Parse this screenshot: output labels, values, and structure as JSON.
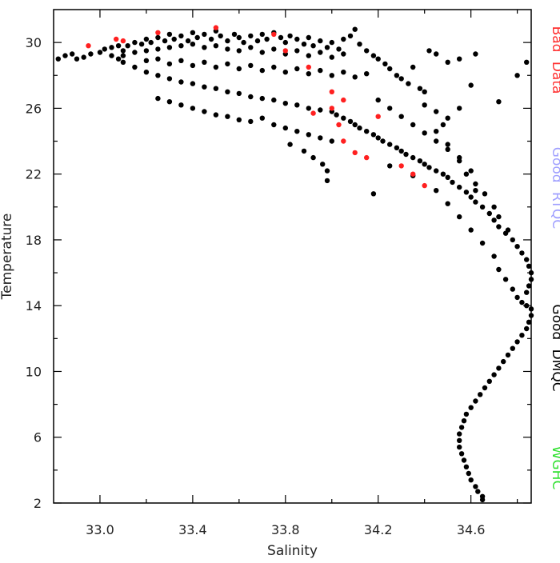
{
  "chart_data": {
    "type": "scatter",
    "title": "",
    "xlabel": "Salinity",
    "ylabel": "Temperature",
    "xlim": [
      32.8,
      34.86
    ],
    "ylim": [
      2,
      32
    ],
    "x_ticks": [
      33.0,
      33.4,
      33.8,
      34.2,
      34.6
    ],
    "x_tick_labels": [
      "33.0",
      "33.4",
      "33.8",
      "34.2",
      "34.6"
    ],
    "x_minor_ticks": [
      33.2,
      33.6,
      34.0,
      34.4,
      34.8
    ],
    "y_ticks": [
      2,
      6,
      10,
      14,
      18,
      22,
      26,
      30
    ],
    "y_tick_labels": [
      "2",
      "6",
      "10",
      "14",
      "18",
      "22",
      "26",
      "30"
    ],
    "y_minor_ticks": [
      4,
      8,
      12,
      16,
      20,
      24,
      28
    ],
    "grid": false,
    "legend_position": "right",
    "legend": [
      {
        "label": "Bad Data",
        "color": "#ff3030"
      },
      {
        "label": "Good RTQC",
        "color": "#a0a0ff"
      },
      {
        "label": "Good DMQC",
        "color": "#000000"
      },
      {
        "label": "WGHC",
        "color": "#30e030"
      }
    ],
    "series": [
      {
        "name": "Good DMQC",
        "color": "#000000",
        "points": [
          [
            32.82,
            29.0
          ],
          [
            32.85,
            29.2
          ],
          [
            32.88,
            29.3
          ],
          [
            32.9,
            29.0
          ],
          [
            32.93,
            29.1
          ],
          [
            32.96,
            29.3
          ],
          [
            33.0,
            29.4
          ],
          [
            33.02,
            29.6
          ],
          [
            33.05,
            29.7
          ],
          [
            33.08,
            29.8
          ],
          [
            33.1,
            29.5
          ],
          [
            33.12,
            29.8
          ],
          [
            33.15,
            30.0
          ],
          [
            33.18,
            29.9
          ],
          [
            33.2,
            30.2
          ],
          [
            33.22,
            30.0
          ],
          [
            33.25,
            30.3
          ],
          [
            33.28,
            30.1
          ],
          [
            33.3,
            30.5
          ],
          [
            33.32,
            30.2
          ],
          [
            33.35,
            30.4
          ],
          [
            33.38,
            30.1
          ],
          [
            33.4,
            30.6
          ],
          [
            33.42,
            30.3
          ],
          [
            33.45,
            30.5
          ],
          [
            33.48,
            30.2
          ],
          [
            33.5,
            30.7
          ],
          [
            33.52,
            30.4
          ],
          [
            33.55,
            30.1
          ],
          [
            33.58,
            30.5
          ],
          [
            33.6,
            30.3
          ],
          [
            33.62,
            30.0
          ],
          [
            33.65,
            30.4
          ],
          [
            33.68,
            30.1
          ],
          [
            33.7,
            30.5
          ],
          [
            33.72,
            30.2
          ],
          [
            33.75,
            30.6
          ],
          [
            33.78,
            30.3
          ],
          [
            33.8,
            30.0
          ],
          [
            33.82,
            30.4
          ],
          [
            33.85,
            30.2
          ],
          [
            33.88,
            29.9
          ],
          [
            33.9,
            30.3
          ],
          [
            33.92,
            29.8
          ],
          [
            33.95,
            30.1
          ],
          [
            33.98,
            29.7
          ],
          [
            34.0,
            30.0
          ],
          [
            34.03,
            29.6
          ],
          [
            34.05,
            30.2
          ],
          [
            34.08,
            30.4
          ],
          [
            34.1,
            30.8
          ],
          [
            34.12,
            29.9
          ],
          [
            34.15,
            29.5
          ],
          [
            34.18,
            29.2
          ],
          [
            34.2,
            29.0
          ],
          [
            34.23,
            28.7
          ],
          [
            34.25,
            28.4
          ],
          [
            34.28,
            28.0
          ],
          [
            34.3,
            27.8
          ],
          [
            34.33,
            27.5
          ],
          [
            34.35,
            28.5
          ],
          [
            34.38,
            27.2
          ],
          [
            34.4,
            27.0
          ],
          [
            34.42,
            29.5
          ],
          [
            34.45,
            29.3
          ],
          [
            34.5,
            28.8
          ],
          [
            34.55,
            29.0
          ],
          [
            34.62,
            29.3
          ],
          [
            34.72,
            26.4
          ],
          [
            34.84,
            28.8
          ],
          [
            34.8,
            28.0
          ],
          [
            34.6,
            27.4
          ],
          [
            34.55,
            26.0
          ],
          [
            34.5,
            25.4
          ],
          [
            34.48,
            25.0
          ],
          [
            34.45,
            24.6
          ],
          [
            33.1,
            29.2
          ],
          [
            33.15,
            29.4
          ],
          [
            33.2,
            29.5
          ],
          [
            33.25,
            29.6
          ],
          [
            33.3,
            29.7
          ],
          [
            33.35,
            29.8
          ],
          [
            33.4,
            29.9
          ],
          [
            33.45,
            29.7
          ],
          [
            33.5,
            29.8
          ],
          [
            33.55,
            29.6
          ],
          [
            33.6,
            29.5
          ],
          [
            33.65,
            29.7
          ],
          [
            33.7,
            29.4
          ],
          [
            33.75,
            29.6
          ],
          [
            33.8,
            29.3
          ],
          [
            33.85,
            29.5
          ],
          [
            33.9,
            29.2
          ],
          [
            33.95,
            29.4
          ],
          [
            34.0,
            29.1
          ],
          [
            34.05,
            29.3
          ],
          [
            33.2,
            28.9
          ],
          [
            33.25,
            29.0
          ],
          [
            33.3,
            28.7
          ],
          [
            33.35,
            28.9
          ],
          [
            33.4,
            28.6
          ],
          [
            33.45,
            28.8
          ],
          [
            33.5,
            28.5
          ],
          [
            33.55,
            28.7
          ],
          [
            33.6,
            28.4
          ],
          [
            33.65,
            28.6
          ],
          [
            33.7,
            28.3
          ],
          [
            33.75,
            28.5
          ],
          [
            33.8,
            28.2
          ],
          [
            33.85,
            28.4
          ],
          [
            33.9,
            28.1
          ],
          [
            33.95,
            28.3
          ],
          [
            34.0,
            28.0
          ],
          [
            34.05,
            28.2
          ],
          [
            34.1,
            27.9
          ],
          [
            34.15,
            28.1
          ],
          [
            33.05,
            29.2
          ],
          [
            33.08,
            29.0
          ],
          [
            33.1,
            28.8
          ],
          [
            33.15,
            28.5
          ],
          [
            33.2,
            28.2
          ],
          [
            33.25,
            28.0
          ],
          [
            33.3,
            27.8
          ],
          [
            33.35,
            27.6
          ],
          [
            33.4,
            27.5
          ],
          [
            33.45,
            27.3
          ],
          [
            33.5,
            27.2
          ],
          [
            33.55,
            27.0
          ],
          [
            33.6,
            26.9
          ],
          [
            33.65,
            26.7
          ],
          [
            33.7,
            26.6
          ],
          [
            33.75,
            26.5
          ],
          [
            33.8,
            26.3
          ],
          [
            33.85,
            26.2
          ],
          [
            33.9,
            26.0
          ],
          [
            33.95,
            25.9
          ],
          [
            34.0,
            25.8
          ],
          [
            34.02,
            25.6
          ],
          [
            34.05,
            25.4
          ],
          [
            34.08,
            25.2
          ],
          [
            34.1,
            25.0
          ],
          [
            34.12,
            24.8
          ],
          [
            34.15,
            24.6
          ],
          [
            34.18,
            24.4
          ],
          [
            34.2,
            24.2
          ],
          [
            34.22,
            24.0
          ],
          [
            34.25,
            23.8
          ],
          [
            34.28,
            23.6
          ],
          [
            34.3,
            23.4
          ],
          [
            34.32,
            23.2
          ],
          [
            34.35,
            23.0
          ],
          [
            34.38,
            22.8
          ],
          [
            34.4,
            22.6
          ],
          [
            34.42,
            22.4
          ],
          [
            34.45,
            22.2
          ],
          [
            34.48,
            22.0
          ],
          [
            34.5,
            21.8
          ],
          [
            34.52,
            21.5
          ],
          [
            34.55,
            21.2
          ],
          [
            34.58,
            20.9
          ],
          [
            34.6,
            20.6
          ],
          [
            34.62,
            20.3
          ],
          [
            34.65,
            20.0
          ],
          [
            34.68,
            19.6
          ],
          [
            34.7,
            19.2
          ],
          [
            34.72,
            18.8
          ],
          [
            34.75,
            18.4
          ],
          [
            34.78,
            18.0
          ],
          [
            34.8,
            17.6
          ],
          [
            34.82,
            17.2
          ],
          [
            34.84,
            16.8
          ],
          [
            34.85,
            16.4
          ],
          [
            34.86,
            16.0
          ],
          [
            34.86,
            15.6
          ],
          [
            34.85,
            15.2
          ],
          [
            34.84,
            14.8
          ],
          [
            33.25,
            26.6
          ],
          [
            33.3,
            26.4
          ],
          [
            33.35,
            26.2
          ],
          [
            33.4,
            26.0
          ],
          [
            33.45,
            25.8
          ],
          [
            33.5,
            25.6
          ],
          [
            33.55,
            25.5
          ],
          [
            33.6,
            25.3
          ],
          [
            33.65,
            25.2
          ],
          [
            33.7,
            25.4
          ],
          [
            33.75,
            25.0
          ],
          [
            33.8,
            24.8
          ],
          [
            33.85,
            24.6
          ],
          [
            33.9,
            24.4
          ],
          [
            33.95,
            24.2
          ],
          [
            34.0,
            24.0
          ],
          [
            33.82,
            23.8
          ],
          [
            33.88,
            23.4
          ],
          [
            33.92,
            23.0
          ],
          [
            33.96,
            22.6
          ],
          [
            33.98,
            22.2
          ],
          [
            33.98,
            21.6
          ],
          [
            34.18,
            20.8
          ],
          [
            34.25,
            22.5
          ],
          [
            34.35,
            21.9
          ],
          [
            34.45,
            21.0
          ],
          [
            34.5,
            20.2
          ],
          [
            34.55,
            19.4
          ],
          [
            34.6,
            18.6
          ],
          [
            34.65,
            17.8
          ],
          [
            34.7,
            17.0
          ],
          [
            34.72,
            16.2
          ],
          [
            34.75,
            15.6
          ],
          [
            34.78,
            15.0
          ],
          [
            34.8,
            14.5
          ],
          [
            34.82,
            14.2
          ],
          [
            34.84,
            14.0
          ],
          [
            34.86,
            13.8
          ],
          [
            34.86,
            13.4
          ],
          [
            34.85,
            13.0
          ],
          [
            34.84,
            12.6
          ],
          [
            34.82,
            12.2
          ],
          [
            34.8,
            11.8
          ],
          [
            34.78,
            11.4
          ],
          [
            34.76,
            11.0
          ],
          [
            34.74,
            10.6
          ],
          [
            34.72,
            10.2
          ],
          [
            34.7,
            9.8
          ],
          [
            34.68,
            9.4
          ],
          [
            34.66,
            9.0
          ],
          [
            34.64,
            8.6
          ],
          [
            34.62,
            8.2
          ],
          [
            34.6,
            7.8
          ],
          [
            34.58,
            7.4
          ],
          [
            34.57,
            7.0
          ],
          [
            34.56,
            6.6
          ],
          [
            34.55,
            6.2
          ],
          [
            34.55,
            5.8
          ],
          [
            34.55,
            5.4
          ],
          [
            34.56,
            5.0
          ],
          [
            34.57,
            4.6
          ],
          [
            34.58,
            4.2
          ],
          [
            34.59,
            3.8
          ],
          [
            34.6,
            3.4
          ],
          [
            34.62,
            3.0
          ],
          [
            34.63,
            2.7
          ],
          [
            34.65,
            2.4
          ],
          [
            34.65,
            2.2
          ],
          [
            34.4,
            26.2
          ],
          [
            34.45,
            25.8
          ],
          [
            34.5,
            23.8
          ],
          [
            34.55,
            23.0
          ],
          [
            34.6,
            22.2
          ],
          [
            34.62,
            21.4
          ],
          [
            34.66,
            20.8
          ],
          [
            34.7,
            20.0
          ],
          [
            34.72,
            19.4
          ],
          [
            34.76,
            18.6
          ],
          [
            34.2,
            26.5
          ],
          [
            34.25,
            26.0
          ],
          [
            34.3,
            25.5
          ],
          [
            34.35,
            25.0
          ],
          [
            34.4,
            24.5
          ],
          [
            34.45,
            24.0
          ],
          [
            34.5,
            23.5
          ],
          [
            34.55,
            22.8
          ],
          [
            34.58,
            22.0
          ],
          [
            34.62,
            21.0
          ]
        ]
      },
      {
        "name": "Bad Data",
        "color": "#ff2020",
        "points": [
          [
            32.95,
            29.8
          ],
          [
            33.07,
            30.2
          ],
          [
            33.1,
            30.1
          ],
          [
            33.25,
            30.6
          ],
          [
            33.5,
            30.9
          ],
          [
            33.75,
            30.5
          ],
          [
            33.8,
            29.5
          ],
          [
            33.9,
            28.5
          ],
          [
            34.0,
            27.0
          ],
          [
            34.05,
            26.5
          ],
          [
            34.0,
            26.0
          ],
          [
            34.03,
            25.0
          ],
          [
            34.05,
            24.0
          ],
          [
            33.92,
            25.7
          ],
          [
            34.1,
            23.3
          ],
          [
            34.15,
            23.0
          ],
          [
            34.3,
            22.5
          ],
          [
            34.35,
            22.0
          ],
          [
            34.4,
            21.3
          ],
          [
            34.2,
            25.5
          ]
        ]
      }
    ]
  }
}
